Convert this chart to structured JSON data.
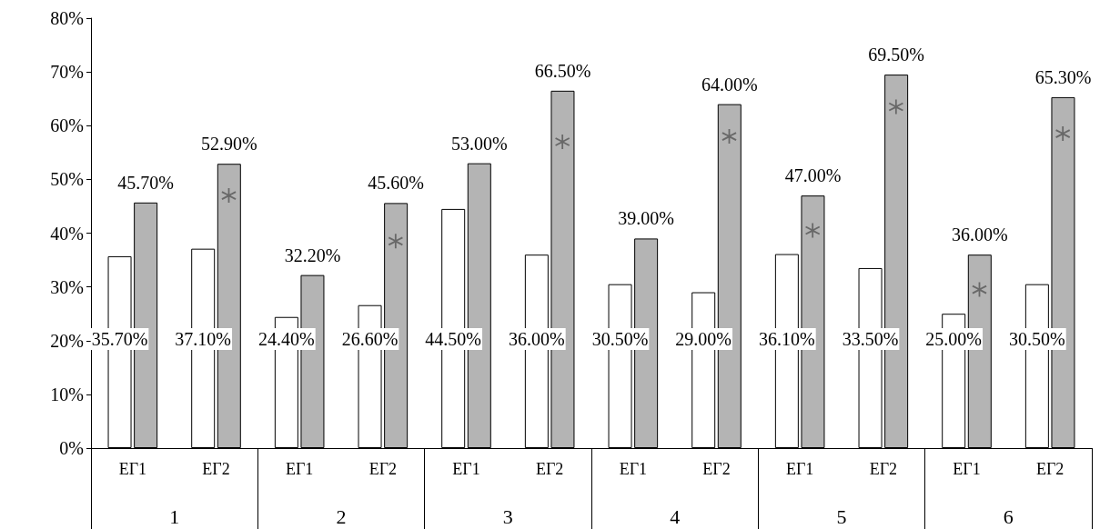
{
  "chart_data": {
    "type": "bar",
    "categories": [
      "ΕΓ1",
      "ΕΓ2",
      "ΕΓ1",
      "ΕΓ2",
      "ΕΓ1",
      "ΕΓ2",
      "ΕΓ1",
      "ΕΓ2",
      "ΕΓ1",
      "ΕΓ2",
      "ΕΓ1",
      "ΕΓ2"
    ],
    "series": [
      {
        "color": "#ffffff",
        "values": [
          35.7,
          37.1,
          24.4,
          26.6,
          44.5,
          36.0,
          30.5,
          29.0,
          36.1,
          33.5,
          25.0,
          30.5
        ],
        "value_labels": [
          "35.70%",
          "37.10%",
          "24.40%",
          "26.60%",
          "44.50%",
          "36.00%",
          "30.50%",
          "29.00%",
          "36.10%",
          "33.50%",
          "25.00%",
          "30.50%"
        ]
      },
      {
        "color": "#b4b4b4",
        "values": [
          45.7,
          52.9,
          32.2,
          45.6,
          53.0,
          66.5,
          39.0,
          64.0,
          47.0,
          69.5,
          36.0,
          65.3
        ],
        "value_labels": [
          "45.70%",
          "52.90%",
          "32.20%",
          "45.60%",
          "53.00%",
          "66.50%",
          "39.00%",
          "64.00%",
          "47.00%",
          "69.50%",
          "36.00%",
          "65.30%"
        ]
      },
      {
        "type": "scatter",
        "marker": "star",
        "color": "#555555",
        "values": [
          null,
          47,
          null,
          38.5,
          null,
          57,
          null,
          58,
          40.5,
          63.5,
          29.5,
          58.5
        ]
      }
    ],
    "annotations": [
      "1",
      "2",
      "3",
      "4",
      "5",
      "6"
    ],
    "ylim": [
      0,
      80
    ],
    "yticks": [
      {
        "value": 0,
        "label": "0%"
      },
      {
        "value": 10,
        "label": "10%"
      },
      {
        "value": 20,
        "label": "20%"
      },
      {
        "value": 30,
        "label": "30%"
      },
      {
        "value": 40,
        "label": "40%"
      },
      {
        "value": 50,
        "label": "50%"
      },
      {
        "value": 60,
        "label": "60%"
      },
      {
        "value": 70,
        "label": "70%"
      },
      {
        "value": 80,
        "label": "80%"
      }
    ],
    "grid": false
  }
}
